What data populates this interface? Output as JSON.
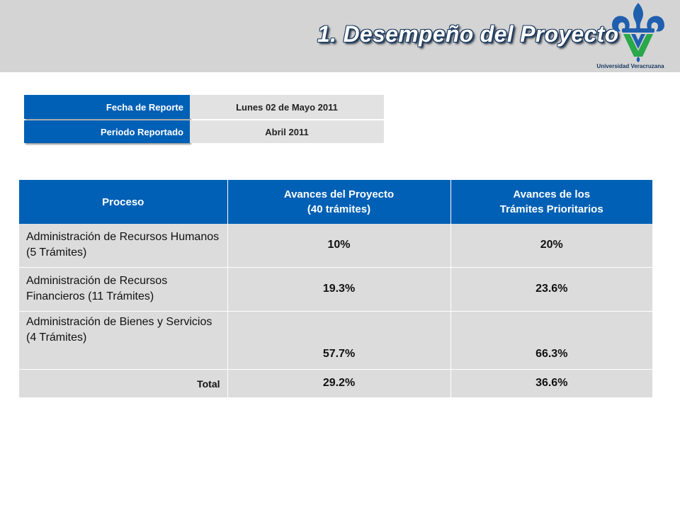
{
  "header": {
    "title": "1. Desempeño del Proyecto",
    "logo_caption": "Universidad Veracruzana",
    "logo_icon": "fleur-de-lis-v-logo",
    "colors": {
      "band": "#d4d4d4",
      "title_outline": "#17375e"
    }
  },
  "report_info": {
    "fecha_label": "Fecha de Reporte",
    "fecha_value": "Lunes 02 de Mayo 2011",
    "periodo_label": "Periodo Reportado",
    "periodo_value": "Abril  2011"
  },
  "table": {
    "headers": {
      "proceso": "Proceso",
      "avances_proyecto_1": "Avances del Proyecto",
      "avances_proyecto_2": "(40 trámites)",
      "avances_tramites_1": "Avances de los",
      "avances_tramites_2": "Trámites Prioritarios"
    },
    "rows": [
      {
        "proceso": "Administración de Recursos Humanos  (5 Trámites)",
        "avance_proyecto": "10%",
        "avance_prioritarios": "20%"
      },
      {
        "proceso": "Administración de Recursos Financieros  (11 Trámites)",
        "avance_proyecto": "19.3%",
        "avance_prioritarios": "23.6%"
      },
      {
        "proceso": "Administración de Bienes y Servicios (4 Trámites)",
        "avance_proyecto": "57.7%",
        "avance_prioritarios": "66.3%"
      }
    ],
    "total": {
      "label": "Total",
      "avance_proyecto": "29.2%",
      "avance_prioritarios": "36.6%"
    },
    "colors": {
      "header_bg": "#0060b5",
      "cell_bg": "#dcdcdc"
    }
  }
}
